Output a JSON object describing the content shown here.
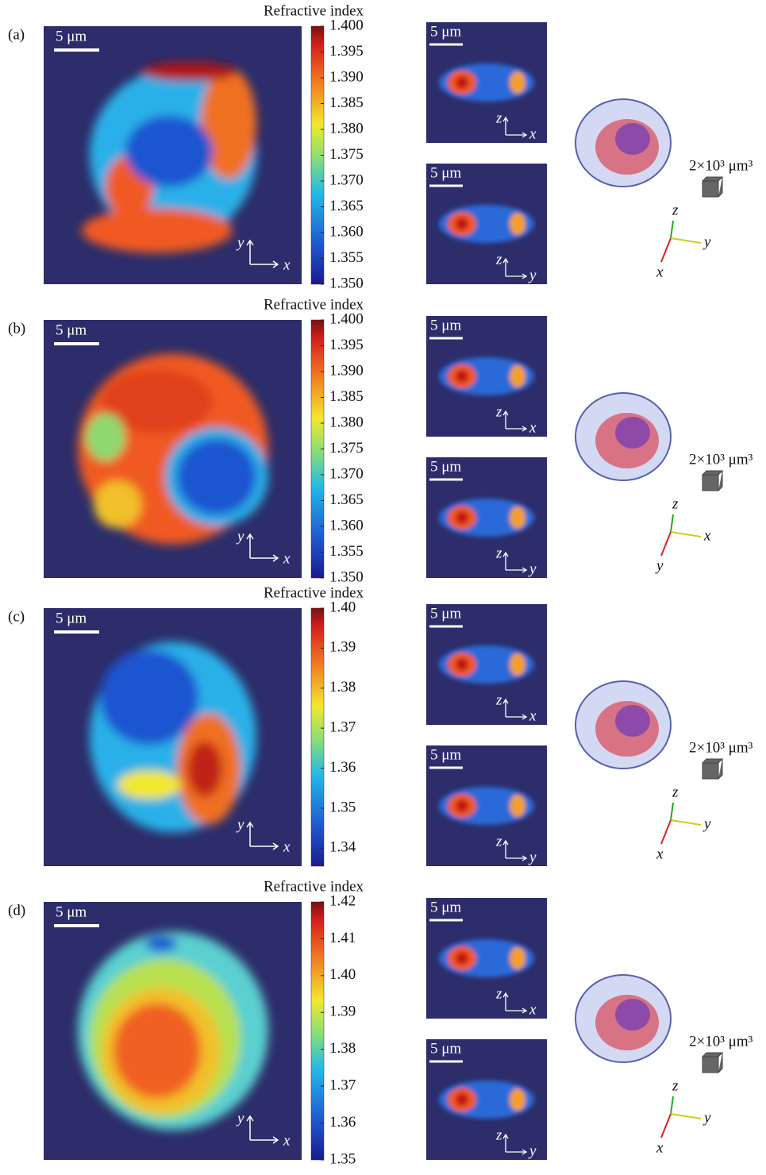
{
  "panels": [
    {
      "label": "(a)",
      "scale_bar": "5 μm",
      "main_axes": [
        "y",
        "x"
      ],
      "colorbar": {
        "title": "Refractive index",
        "lim": [
          1.35,
          1.4
        ],
        "ticks": [
          {
            "value": 1.4,
            "label": "1.400"
          },
          1.395,
          {
            "value": 1.39,
            "label": "1.390"
          },
          1.385,
          {
            "value": 1.38,
            "label": "1.380"
          },
          1.375,
          {
            "value": 1.37,
            "label": "1.370"
          },
          1.365,
          {
            "value": 1.36,
            "label": "1.360"
          },
          1.355,
          {
            "value": 1.35,
            "label": "1.350"
          }
        ]
      },
      "slices": [
        {
          "scale_bar": "5 μm",
          "axes": [
            "z",
            "x"
          ]
        },
        {
          "scale_bar": "5 μm",
          "axes": [
            "z",
            "y"
          ]
        }
      ],
      "volume": {
        "label": "2×10³ μm³",
        "axes": [
          "z",
          "y",
          "x"
        ]
      }
    },
    {
      "label": "(b)",
      "scale_bar": "5 μm",
      "main_axes": [
        "y",
        "x"
      ],
      "colorbar": {
        "title": "Refractive index",
        "lim": [
          1.35,
          1.4
        ],
        "ticks": [
          {
            "value": 1.4,
            "label": "1.400"
          },
          1.395,
          {
            "value": 1.39,
            "label": "1.390"
          },
          1.385,
          {
            "value": 1.38,
            "label": "1.380"
          },
          1.375,
          {
            "value": 1.37,
            "label": "1.370"
          },
          1.365,
          {
            "value": 1.36,
            "label": "1.360"
          },
          1.355,
          {
            "value": 1.35,
            "label": "1.350"
          }
        ]
      },
      "slices": [
        {
          "scale_bar": "5 μm",
          "axes": [
            "z",
            "x"
          ]
        },
        {
          "scale_bar": "5 μm",
          "axes": [
            "z",
            "y"
          ]
        }
      ],
      "volume": {
        "label": "2×10³ μm³",
        "axes": [
          "z",
          "x",
          "y"
        ]
      }
    },
    {
      "label": "(c)",
      "scale_bar": "5 μm",
      "main_axes": [
        "y",
        "x"
      ],
      "colorbar": {
        "title": "Refractive index",
        "lim": [
          1.3355,
          1.4
        ],
        "ticks": [
          {
            "value": 1.4,
            "label": "1.40"
          },
          1.39,
          1.38,
          1.37,
          1.36,
          1.35,
          1.34
        ]
      },
      "slices": [
        {
          "scale_bar": "5 μm",
          "axes": [
            "z",
            "x"
          ]
        },
        {
          "scale_bar": "5 μm",
          "axes": [
            "z",
            "y"
          ]
        }
      ],
      "volume": {
        "label": "2×10³ μm³",
        "axes": [
          "z",
          "y",
          "x"
        ]
      }
    },
    {
      "label": "(d)",
      "scale_bar": "5 μm",
      "main_axes": [
        "y",
        "x"
      ],
      "colorbar": {
        "title": "Refractive index",
        "lim": [
          1.35,
          1.42
        ],
        "ticks": [
          1.42,
          1.41,
          {
            "value": 1.4,
            "label": "1.40"
          },
          1.39,
          1.38,
          1.37,
          1.36,
          1.35
        ]
      },
      "slices": [
        {
          "scale_bar": "5 μm",
          "axes": [
            "z",
            "x"
          ]
        },
        {
          "scale_bar": "5 μm",
          "axes": [
            "z",
            "y"
          ]
        }
      ],
      "volume": {
        "label": "2×10³ μm³",
        "axes": [
          "z",
          "y",
          "x"
        ]
      }
    }
  ]
}
